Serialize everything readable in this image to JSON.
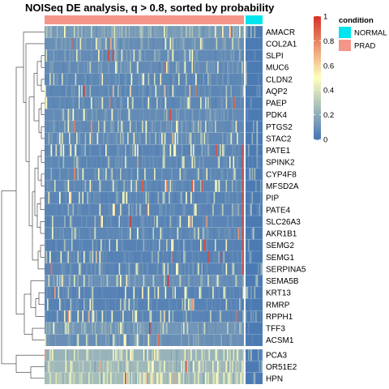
{
  "chart_data": {
    "type": "heatmap",
    "title": "NOISeq DE analysis, q > 0.8, sorted by probability",
    "rows": [
      "AMACR",
      "COL2A1",
      "SLPI",
      "MUC6",
      "CLDN2",
      "AQP2",
      "PAEP",
      "PDK4",
      "PTGS2",
      "STAC2",
      "PATE1",
      "SPINK2",
      "CYP4F8",
      "MFSD2A",
      "PIP",
      "PATE4",
      "SLC26A3",
      "AKR1B1",
      "SEMG2",
      "SEMG1",
      "SERPINA5",
      "SEMA5B",
      "KRT13",
      "RMRP",
      "RPPH1",
      "TFF3",
      "ACSM1",
      "PCA3",
      "OR51E2",
      "HPN"
    ],
    "row_groups": [
      [
        "AMACR",
        "COL2A1",
        "SLPI",
        "MUC6",
        "CLDN2",
        "AQP2",
        "PAEP",
        "PDK4",
        "PTGS2",
        "STAC2",
        "PATE1",
        "SPINK2",
        "CYP4F8",
        "MFSD2A",
        "PIP",
        "PATE4",
        "SLC26A3",
        "AKR1B1",
        "SEMG2",
        "SEMG1",
        "SERPINA5",
        "SEMA5B",
        "KRT13",
        "RMRP",
        "RPPH1",
        "TFF3",
        "ACSM1"
      ],
      [
        "PCA3",
        "OR51E2",
        "HPN"
      ]
    ],
    "column_annotation": {
      "name": "condition",
      "levels": [
        "NORMAL",
        "PRAD"
      ],
      "colors": {
        "NORMAL": "#00e5ee",
        "PRAD": "#f4958a"
      },
      "column_split": {
        "PRAD": 0.85,
        "NORMAL": 0.15
      }
    },
    "color_scale": {
      "domain": [
        0,
        1
      ],
      "ticks": [
        0,
        0.2,
        0.4,
        0.6,
        0.8,
        1
      ],
      "colors": [
        "#4575b4",
        "#ffffbf",
        "#d73027"
      ]
    },
    "row_stats": {
      "AMACR": 0.17,
      "COL2A1": 0.12,
      "SLPI": 0.1,
      "MUC6": 0.1,
      "CLDN2": 0.08,
      "AQP2": 0.08,
      "PAEP": 0.08,
      "PDK4": 0.1,
      "PTGS2": 0.1,
      "STAC2": 0.09,
      "PATE1": 0.07,
      "SPINK2": 0.08,
      "CYP4F8": 0.08,
      "MFSD2A": 0.08,
      "PIP": 0.07,
      "PATE4": 0.07,
      "SLC26A3": 0.07,
      "AKR1B1": 0.08,
      "SEMG2": 0.06,
      "SEMG1": 0.06,
      "SERPINA5": 0.07,
      "SEMA5B": 0.12,
      "KRT13": 0.06,
      "RMRP": 0.06,
      "RPPH1": 0.07,
      "TFF3": 0.15,
      "ACSM1": 0.12,
      "PCA3": 0.28,
      "OR51E2": 0.3,
      "HPN": 0.32
    },
    "legend_position": "right",
    "grid": false
  }
}
